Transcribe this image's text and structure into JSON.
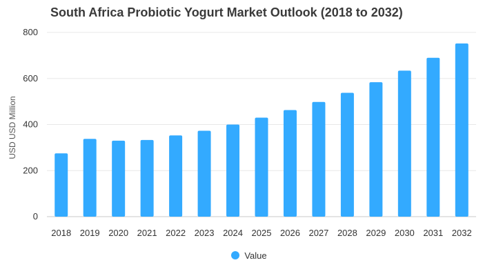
{
  "chart_data": {
    "type": "bar",
    "title": "South Africa Probiotic Yogurt Market Outlook (2018 to 2032)",
    "xlabel": "",
    "ylabel": "USD USD Million",
    "categories": [
      "2018",
      "2019",
      "2020",
      "2021",
      "2022",
      "2023",
      "2024",
      "2025",
      "2026",
      "2027",
      "2028",
      "2029",
      "2030",
      "2031",
      "2032"
    ],
    "series": [
      {
        "name": "Value",
        "color": "#33aaff",
        "values": [
          275,
          338,
          330,
          333,
          353,
          373,
          400,
          430,
          463,
          498,
          538,
          584,
          634,
          690,
          752
        ]
      }
    ],
    "ylim": [
      0,
      800
    ],
    "yticks": [
      0,
      200,
      400,
      600,
      800
    ],
    "grid": true,
    "legend_position": "bottom"
  }
}
